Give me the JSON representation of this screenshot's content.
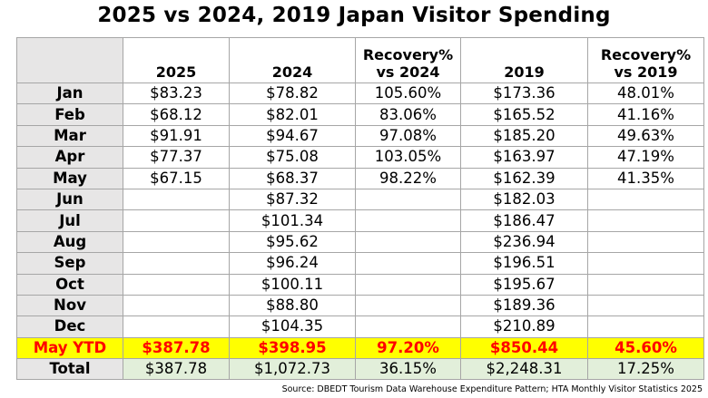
{
  "title": "2025 vs 2024, 2019 Japan Visitor Spending",
  "headers": {
    "corner": "",
    "y2025": "2025",
    "y2024": "2024",
    "rec2024_line1": "Recovery%",
    "rec2024_line2": "vs 2024",
    "y2019": "2019",
    "rec2019_line1": "Recovery%",
    "rec2019_line2": "vs 2019"
  },
  "rows": [
    {
      "month": "Jan",
      "y2025": "$83.23",
      "y2024": "$78.82",
      "rec2024": "105.60%",
      "y2019": "$173.36",
      "rec2019": "48.01%"
    },
    {
      "month": "Feb",
      "y2025": "$68.12",
      "y2024": "$82.01",
      "rec2024": "83.06%",
      "y2019": "$165.52",
      "rec2019": "41.16%"
    },
    {
      "month": "Mar",
      "y2025": "$91.91",
      "y2024": "$94.67",
      "rec2024": "97.08%",
      "y2019": "$185.20",
      "rec2019": "49.63%"
    },
    {
      "month": "Apr",
      "y2025": "$77.37",
      "y2024": "$75.08",
      "rec2024": "103.05%",
      "y2019": "$163.97",
      "rec2019": "47.19%"
    },
    {
      "month": "May",
      "y2025": "$67.15",
      "y2024": "$68.37",
      "rec2024": "98.22%",
      "y2019": "$162.39",
      "rec2019": "41.35%"
    },
    {
      "month": "Jun",
      "y2025": "",
      "y2024": "$87.32",
      "rec2024": "",
      "y2019": "$182.03",
      "rec2019": ""
    },
    {
      "month": "Jul",
      "y2025": "",
      "y2024": "$101.34",
      "rec2024": "",
      "y2019": "$186.47",
      "rec2019": ""
    },
    {
      "month": "Aug",
      "y2025": "",
      "y2024": "$95.62",
      "rec2024": "",
      "y2019": "$236.94",
      "rec2019": ""
    },
    {
      "month": "Sep",
      "y2025": "",
      "y2024": "$96.24",
      "rec2024": "",
      "y2019": "$196.51",
      "rec2019": ""
    },
    {
      "month": "Oct",
      "y2025": "",
      "y2024": "$100.11",
      "rec2024": "",
      "y2019": "$195.67",
      "rec2019": ""
    },
    {
      "month": "Nov",
      "y2025": "",
      "y2024": "$88.80",
      "rec2024": "",
      "y2019": "$189.36",
      "rec2019": ""
    },
    {
      "month": "Dec",
      "y2025": "",
      "y2024": "$104.35",
      "rec2024": "",
      "y2019": "$210.89",
      "rec2019": ""
    }
  ],
  "ytd": {
    "label": "May YTD",
    "y2025": "$387.78",
    "y2024": "$398.95",
    "rec2024": "97.20%",
    "y2019": "$850.44",
    "rec2019": "45.60%"
  },
  "total": {
    "label": "Total",
    "y2025": "$387.78",
    "y2024": "$1,072.73",
    "rec2024": "36.15%",
    "y2019": "$2,248.31",
    "rec2019": "17.25%"
  },
  "source": "Source: DBEDT Tourism Data Warehouse Expenditure Pattern; HTA Monthly Visitor Statistics 2025",
  "colors": {
    "header_gray": "#e7e6e6",
    "ytd_yellow": "#ffff00",
    "ytd_text_red": "#ff0000",
    "total_green": "#e2efda"
  }
}
